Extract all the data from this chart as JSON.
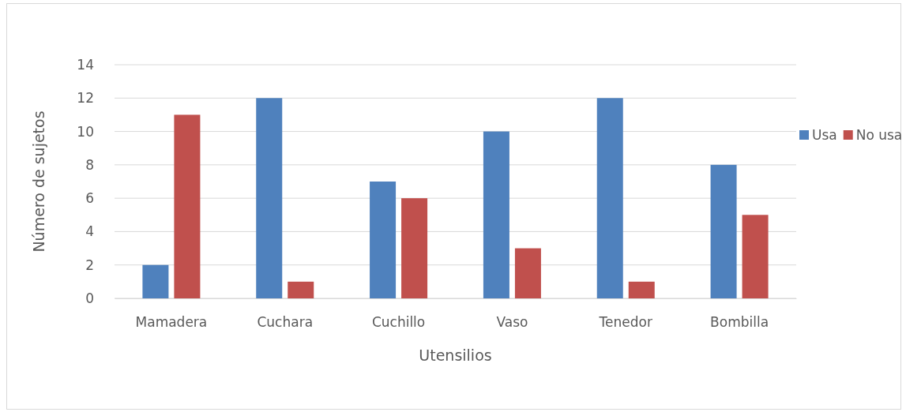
{
  "chart_data": {
    "type": "bar",
    "xlabel": "Utensilios",
    "ylabel": "Número de sujetos",
    "categories": [
      "Mamadera",
      "Cuchara",
      "Cuchillo",
      "Vaso",
      "Tenedor",
      "Bombilla"
    ],
    "series": [
      {
        "name": "Usa",
        "color": "#4f81bd",
        "values": [
          2,
          12,
          7,
          10,
          12,
          8
        ]
      },
      {
        "name": "No usa",
        "color": "#c0504d",
        "values": [
          11,
          1,
          6,
          3,
          1,
          5
        ]
      }
    ],
    "ylim": [
      0,
      14
    ],
    "yticks": [
      0,
      2,
      4,
      6,
      8,
      10,
      12,
      14
    ],
    "grid": "y",
    "legend": "right"
  }
}
